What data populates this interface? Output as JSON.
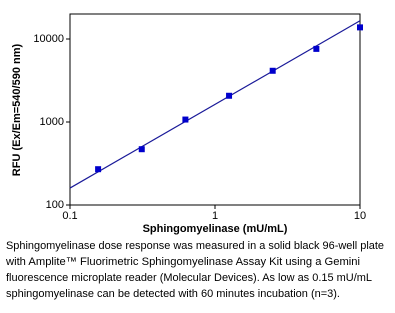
{
  "chart_data": {
    "type": "scatter",
    "xlabel": "Sphingomyelinase (mU/mL)",
    "ylabel": "RFU (Ex/Em=540/590 nm)",
    "xscale": "log",
    "yscale": "log",
    "xlim": [
      0.1,
      10
    ],
    "ylim": [
      100,
      20000
    ],
    "xticks": [
      0.1,
      1,
      10
    ],
    "yticks": [
      100,
      1000,
      10000
    ],
    "series": [
      {
        "color": "#0000cc",
        "x": [
          0.15625,
          0.3125,
          0.625,
          1.25,
          2.5,
          5,
          10
        ],
        "values": [
          270,
          470,
          1070,
          2070,
          4140,
          7600,
          13800
        ]
      }
    ],
    "fit_line": {
      "color": "#1a1a99",
      "x": [
        0.1,
        10
      ],
      "values": [
        160,
        16600
      ]
    }
  },
  "caption": {
    "lines": [
      "Sphingomyelinase dose response was measured in a solid black 96-well plate",
      "with Amplite™ Fluorimetric Sphingomyelinase Assay Kit using a Gemini",
      "fluorescence microplate reader (Molecular Devices). As low as 0.15 mU/mL",
      "sphingomyelinase can be detected with 60 minutes incubation (n=3)."
    ]
  }
}
